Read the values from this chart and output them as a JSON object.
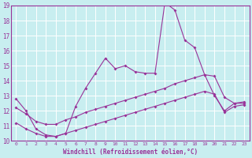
{
  "xlabel": "Windchill (Refroidissement éolien,°C)",
  "background_color": "#c8eef0",
  "grid_color": "#b0d8da",
  "line_color": "#993399",
  "xlim": [
    -0.5,
    23.5
  ],
  "ylim": [
    10,
    19
  ],
  "x_ticks": [
    0,
    1,
    2,
    3,
    4,
    5,
    6,
    7,
    8,
    9,
    10,
    11,
    12,
    13,
    14,
    15,
    16,
    17,
    18,
    19,
    20,
    21,
    22,
    23
  ],
  "y_ticks": [
    10,
    11,
    12,
    13,
    14,
    15,
    16,
    17,
    18,
    19
  ],
  "line1_x": [
    0,
    1,
    2,
    3,
    4,
    5,
    6,
    7,
    8,
    9,
    10,
    11,
    12,
    13,
    14,
    15,
    16,
    17,
    18,
    19,
    20,
    21,
    22,
    23
  ],
  "line1_y": [
    12.8,
    12.0,
    10.8,
    10.4,
    10.3,
    10.5,
    12.3,
    13.5,
    14.5,
    15.5,
    14.8,
    15.0,
    14.6,
    14.5,
    14.5,
    19.2,
    18.7,
    16.7,
    16.2,
    14.4,
    13.0,
    12.0,
    12.5,
    12.5
  ],
  "line2_x": [
    0,
    1,
    2,
    3,
    4,
    5,
    6,
    7,
    8,
    9,
    10,
    11,
    12,
    13,
    14,
    15,
    16,
    17,
    18,
    19,
    20,
    21,
    22,
    23
  ],
  "line2_y": [
    12.2,
    11.8,
    11.3,
    11.1,
    11.1,
    11.4,
    11.6,
    11.9,
    12.1,
    12.3,
    12.5,
    12.7,
    12.9,
    13.1,
    13.3,
    13.5,
    13.8,
    14.0,
    14.2,
    14.4,
    14.3,
    12.9,
    12.5,
    12.6
  ],
  "line3_x": [
    0,
    1,
    2,
    3,
    4,
    5,
    6,
    7,
    8,
    9,
    10,
    11,
    12,
    13,
    14,
    15,
    16,
    17,
    18,
    19,
    20,
    21,
    22,
    23
  ],
  "line3_y": [
    11.2,
    10.8,
    10.5,
    10.3,
    10.3,
    10.5,
    10.7,
    10.9,
    11.1,
    11.3,
    11.5,
    11.7,
    11.9,
    12.1,
    12.3,
    12.5,
    12.7,
    12.9,
    13.1,
    13.3,
    13.1,
    11.9,
    12.3,
    12.4
  ],
  "marker": "D",
  "markersize": 2.0,
  "linewidth": 0.8
}
